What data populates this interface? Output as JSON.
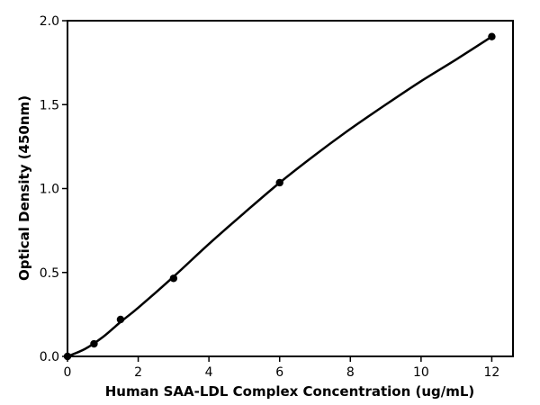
{
  "chart_data": {
    "type": "scatter",
    "title": "",
    "xlabel": "Human SAA-LDL Complex Concentration (ug/mL)",
    "ylabel": "Optical Density (450nm)",
    "xlim": [
      0,
      12.6
    ],
    "ylim": [
      0,
      2.0
    ],
    "x_ticks": [
      0,
      2,
      4,
      6,
      8,
      10,
      12
    ],
    "x_tick_labels": [
      "0",
      "2",
      "4",
      "6",
      "8",
      "10",
      "12"
    ],
    "y_ticks": [
      0.0,
      0.5,
      1.0,
      1.5,
      2.0
    ],
    "y_tick_labels": [
      "0.0",
      "0.5",
      "1.0",
      "1.5",
      "2.0"
    ],
    "grid": false,
    "legend": "none",
    "series": [
      {
        "points": [
          {
            "x": 0,
            "y": 0.0
          },
          {
            "x": 0.75,
            "y": 0.075
          },
          {
            "x": 1.5,
            "y": 0.22
          },
          {
            "x": 3.0,
            "y": 0.465
          },
          {
            "x": 6.0,
            "y": 1.035
          },
          {
            "x": 12.0,
            "y": 1.905
          }
        ]
      }
    ],
    "fit_curve": {
      "type": "smooth",
      "points": [
        {
          "x": 0,
          "y": 0.0
        },
        {
          "x": 0.5,
          "y": 0.045
        },
        {
          "x": 1.0,
          "y": 0.115
        },
        {
          "x": 1.5,
          "y": 0.205
        },
        {
          "x": 2.0,
          "y": 0.29
        },
        {
          "x": 3.0,
          "y": 0.475
        },
        {
          "x": 4.0,
          "y": 0.67
        },
        {
          "x": 5.0,
          "y": 0.855
        },
        {
          "x": 6.0,
          "y": 1.035
        },
        {
          "x": 7.0,
          "y": 1.2
        },
        {
          "x": 8.0,
          "y": 1.355
        },
        {
          "x": 9.0,
          "y": 1.5
        },
        {
          "x": 10.0,
          "y": 1.64
        },
        {
          "x": 11.0,
          "y": 1.77
        },
        {
          "x": 12.0,
          "y": 1.905
        }
      ]
    },
    "colors": {
      "line": "#000000",
      "marker": "#000000",
      "axis": "#000000"
    }
  }
}
